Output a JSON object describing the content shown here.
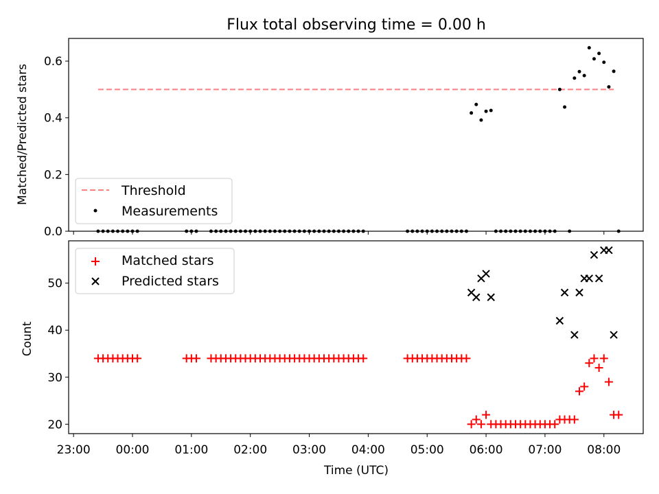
{
  "chart_data": [
    {
      "type": "scatter",
      "title": "Flux total observing time = 0.00 h",
      "ylabel": "Matched/Predicted stars",
      "xlabel": "",
      "ylim": [
        0,
        0.68
      ],
      "yticks": [
        "0.0",
        "0.2",
        "0.4",
        "0.6"
      ],
      "ytick_values": [
        0,
        0.2,
        0.4,
        0.6
      ],
      "legend_position": "lower-left",
      "threshold": {
        "name": "Threshold",
        "x0": "23:25",
        "x1": "08:10",
        "y": 0.5,
        "color": "#ff7f7f"
      },
      "measurements": {
        "name": "Measurements",
        "color": "#000000",
        "points": [
          [
            "23:25",
            0
          ],
          [
            "23:30",
            0
          ],
          [
            "23:35",
            0
          ],
          [
            "23:40",
            0
          ],
          [
            "23:45",
            0
          ],
          [
            "23:50",
            0
          ],
          [
            "23:55",
            0
          ],
          [
            "00:00",
            0
          ],
          [
            "00:05",
            0
          ],
          [
            "00:55",
            0
          ],
          [
            "01:00",
            0
          ],
          [
            "01:05",
            0
          ],
          [
            "01:20",
            0
          ],
          [
            "01:25",
            0
          ],
          [
            "01:30",
            0
          ],
          [
            "01:35",
            0
          ],
          [
            "01:40",
            0
          ],
          [
            "01:45",
            0
          ],
          [
            "01:50",
            0
          ],
          [
            "01:55",
            0
          ],
          [
            "02:00",
            0
          ],
          [
            "02:05",
            0
          ],
          [
            "02:10",
            0
          ],
          [
            "02:15",
            0
          ],
          [
            "02:20",
            0
          ],
          [
            "02:25",
            0
          ],
          [
            "02:30",
            0
          ],
          [
            "02:35",
            0
          ],
          [
            "02:40",
            0
          ],
          [
            "02:45",
            0
          ],
          [
            "02:50",
            0
          ],
          [
            "02:55",
            0
          ],
          [
            "03:00",
            0
          ],
          [
            "03:05",
            0
          ],
          [
            "03:10",
            0
          ],
          [
            "03:15",
            0
          ],
          [
            "03:20",
            0
          ],
          [
            "03:25",
            0
          ],
          [
            "03:30",
            0
          ],
          [
            "03:35",
            0
          ],
          [
            "03:40",
            0
          ],
          [
            "03:45",
            0
          ],
          [
            "03:50",
            0
          ],
          [
            "03:55",
            0
          ],
          [
            "04:40",
            0
          ],
          [
            "04:45",
            0
          ],
          [
            "04:50",
            0
          ],
          [
            "04:55",
            0
          ],
          [
            "05:00",
            0
          ],
          [
            "05:05",
            0
          ],
          [
            "05:10",
            0
          ],
          [
            "05:15",
            0
          ],
          [
            "05:20",
            0
          ],
          [
            "05:25",
            0
          ],
          [
            "05:30",
            0
          ],
          [
            "05:35",
            0
          ],
          [
            "05:40",
            0
          ],
          [
            "05:45",
            0.417
          ],
          [
            "05:50",
            0.447
          ],
          [
            "05:55",
            0.392
          ],
          [
            "06:00",
            0.423
          ],
          [
            "06:05",
            0.426
          ],
          [
            "06:10",
            0
          ],
          [
            "06:15",
            0
          ],
          [
            "06:20",
            0
          ],
          [
            "06:25",
            0
          ],
          [
            "06:30",
            0
          ],
          [
            "06:35",
            0
          ],
          [
            "06:40",
            0
          ],
          [
            "06:45",
            0
          ],
          [
            "06:50",
            0
          ],
          [
            "06:55",
            0
          ],
          [
            "07:00",
            0
          ],
          [
            "07:05",
            0
          ],
          [
            "07:10",
            0
          ],
          [
            "07:15",
            0.5
          ],
          [
            "07:20",
            0.438
          ],
          [
            "07:25",
            0
          ],
          [
            "07:30",
            0.54
          ],
          [
            "07:35",
            0.563
          ],
          [
            "07:40",
            0.549
          ],
          [
            "07:45",
            0.647
          ],
          [
            "07:50",
            0.608
          ],
          [
            "07:55",
            0.627
          ],
          [
            "08:00",
            0.596
          ],
          [
            "08:05",
            0.509
          ],
          [
            "08:10",
            0.564
          ],
          [
            "08:15",
            0
          ]
        ]
      }
    },
    {
      "type": "scatter",
      "title": "",
      "ylabel": "Count",
      "xlabel": "Time (UTC)",
      "ylim": [
        18,
        59
      ],
      "yticks": [
        "20",
        "30",
        "40",
        "50"
      ],
      "ytick_values": [
        20,
        30,
        40,
        50
      ],
      "xlim": [
        "22:55",
        "08:40"
      ],
      "xticks": [
        "23:00",
        "00:00",
        "01:00",
        "02:00",
        "03:00",
        "04:00",
        "05:00",
        "06:00",
        "07:00",
        "08:00"
      ],
      "legend_position": "top-left",
      "series": [
        {
          "name": "Matched stars",
          "marker": "+",
          "color": "#ff0000",
          "points": [
            [
              "23:25",
              34
            ],
            [
              "23:30",
              34
            ],
            [
              "23:35",
              34
            ],
            [
              "23:40",
              34
            ],
            [
              "23:45",
              34
            ],
            [
              "23:50",
              34
            ],
            [
              "23:55",
              34
            ],
            [
              "00:00",
              34
            ],
            [
              "00:05",
              34
            ],
            [
              "00:55",
              34
            ],
            [
              "01:00",
              34
            ],
            [
              "01:05",
              34
            ],
            [
              "01:20",
              34
            ],
            [
              "01:25",
              34
            ],
            [
              "01:30",
              34
            ],
            [
              "01:35",
              34
            ],
            [
              "01:40",
              34
            ],
            [
              "01:45",
              34
            ],
            [
              "01:50",
              34
            ],
            [
              "01:55",
              34
            ],
            [
              "02:00",
              34
            ],
            [
              "02:05",
              34
            ],
            [
              "02:10",
              34
            ],
            [
              "02:15",
              34
            ],
            [
              "02:20",
              34
            ],
            [
              "02:25",
              34
            ],
            [
              "02:30",
              34
            ],
            [
              "02:35",
              34
            ],
            [
              "02:40",
              34
            ],
            [
              "02:45",
              34
            ],
            [
              "02:50",
              34
            ],
            [
              "02:55",
              34
            ],
            [
              "03:00",
              34
            ],
            [
              "03:05",
              34
            ],
            [
              "03:10",
              34
            ],
            [
              "03:15",
              34
            ],
            [
              "03:20",
              34
            ],
            [
              "03:25",
              34
            ],
            [
              "03:30",
              34
            ],
            [
              "03:35",
              34
            ],
            [
              "03:40",
              34
            ],
            [
              "03:45",
              34
            ],
            [
              "03:50",
              34
            ],
            [
              "03:55",
              34
            ],
            [
              "04:40",
              34
            ],
            [
              "04:45",
              34
            ],
            [
              "04:50",
              34
            ],
            [
              "04:55",
              34
            ],
            [
              "05:00",
              34
            ],
            [
              "05:05",
              34
            ],
            [
              "05:10",
              34
            ],
            [
              "05:15",
              34
            ],
            [
              "05:20",
              34
            ],
            [
              "05:25",
              34
            ],
            [
              "05:30",
              34
            ],
            [
              "05:35",
              34
            ],
            [
              "05:40",
              34
            ],
            [
              "05:45",
              20
            ],
            [
              "05:50",
              21
            ],
            [
              "05:55",
              20
            ],
            [
              "06:00",
              22
            ],
            [
              "06:05",
              20
            ],
            [
              "06:10",
              20
            ],
            [
              "06:15",
              20
            ],
            [
              "06:20",
              20
            ],
            [
              "06:25",
              20
            ],
            [
              "06:30",
              20
            ],
            [
              "06:35",
              20
            ],
            [
              "06:40",
              20
            ],
            [
              "06:45",
              20
            ],
            [
              "06:50",
              20
            ],
            [
              "06:55",
              20
            ],
            [
              "07:00",
              20
            ],
            [
              "07:05",
              20
            ],
            [
              "07:10",
              20
            ],
            [
              "07:15",
              21
            ],
            [
              "07:20",
              21
            ],
            [
              "07:25",
              21
            ],
            [
              "07:30",
              21
            ],
            [
              "07:35",
              27
            ],
            [
              "07:40",
              28
            ],
            [
              "07:45",
              33
            ],
            [
              "07:50",
              34
            ],
            [
              "07:55",
              32
            ],
            [
              "08:00",
              34
            ],
            [
              "08:05",
              29
            ],
            [
              "08:10",
              22
            ],
            [
              "08:15",
              22
            ]
          ]
        },
        {
          "name": "Predicted stars",
          "marker": "x",
          "color": "#000000",
          "points": [
            [
              "05:45",
              48
            ],
            [
              "05:50",
              47
            ],
            [
              "05:55",
              51
            ],
            [
              "06:00",
              52
            ],
            [
              "06:05",
              47
            ],
            [
              "07:15",
              42
            ],
            [
              "07:20",
              48
            ],
            [
              "07:30",
              39
            ],
            [
              "07:35",
              48
            ],
            [
              "07:40",
              51
            ],
            [
              "07:45",
              51
            ],
            [
              "07:50",
              56
            ],
            [
              "07:55",
              51
            ],
            [
              "08:00",
              57
            ],
            [
              "08:05",
              57
            ],
            [
              "08:10",
              39
            ]
          ]
        }
      ]
    }
  ]
}
